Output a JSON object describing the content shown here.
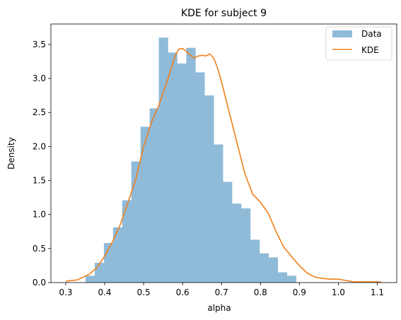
{
  "chart_data": {
    "type": "bar",
    "title": "KDE for subject 9",
    "xlabel": "alpha",
    "ylabel": "Density",
    "xlim": [
      0.262,
      1.15
    ],
    "ylim": [
      0,
      3.8
    ],
    "x_ticks": [
      "0.3",
      "0.4",
      "0.5",
      "0.6",
      "0.7",
      "0.8",
      "0.9",
      "1.0",
      "1.1"
    ],
    "y_ticks": [
      "0.0",
      "0.5",
      "1.0",
      "1.5",
      "2.0",
      "2.5",
      "3.0",
      "3.5"
    ],
    "grid": false,
    "legend_position": "top-right",
    "legend": [
      {
        "label": "Data",
        "kind": "patch"
      },
      {
        "label": "KDE",
        "kind": "line"
      }
    ],
    "series": [
      {
        "name": "Data",
        "kind": "histogram",
        "color": "#8fbbd9",
        "bin_edges": [
          0.351,
          0.3745,
          0.398,
          0.4215,
          0.445,
          0.4685,
          0.492,
          0.5155,
          0.539,
          0.5625,
          0.586,
          0.6095,
          0.633,
          0.6565,
          0.68,
          0.7035,
          0.727,
          0.7505,
          0.774,
          0.7975,
          0.821,
          0.8445,
          0.868,
          0.8915,
          0.915,
          0.9385,
          0.962
        ],
        "values": [
          0.1,
          0.29,
          0.58,
          0.81,
          1.21,
          1.78,
          2.29,
          2.56,
          3.6,
          3.38,
          3.22,
          3.45,
          3.09,
          2.75,
          2.03,
          1.48,
          1.16,
          1.09,
          0.63,
          0.43,
          0.37,
          0.15,
          0.1,
          0.0,
          0.0,
          0.0
        ]
      },
      {
        "name": "KDE",
        "kind": "line",
        "color": "#ef7f1b",
        "x": [
          0.3,
          0.33,
          0.36,
          0.38,
          0.4,
          0.42,
          0.44,
          0.46,
          0.48,
          0.5,
          0.52,
          0.54,
          0.56,
          0.58,
          0.59,
          0.6,
          0.61,
          0.62,
          0.63,
          0.64,
          0.65,
          0.66,
          0.67,
          0.68,
          0.69,
          0.7,
          0.72,
          0.74,
          0.76,
          0.78,
          0.8,
          0.82,
          0.84,
          0.86,
          0.88,
          0.9,
          0.92,
          0.94,
          0.96,
          0.98,
          1.0,
          1.02,
          1.04,
          1.06,
          1.08,
          1.11
        ],
        "y": [
          0.02,
          0.04,
          0.12,
          0.22,
          0.39,
          0.6,
          0.85,
          1.18,
          1.52,
          2.0,
          2.35,
          2.62,
          2.95,
          3.32,
          3.43,
          3.44,
          3.4,
          3.34,
          3.3,
          3.33,
          3.34,
          3.33,
          3.36,
          3.3,
          3.15,
          2.95,
          2.5,
          2.05,
          1.6,
          1.3,
          1.18,
          1.02,
          0.75,
          0.52,
          0.38,
          0.25,
          0.14,
          0.08,
          0.06,
          0.05,
          0.05,
          0.03,
          0.01,
          0.01,
          0.01,
          0.01
        ]
      }
    ]
  }
}
